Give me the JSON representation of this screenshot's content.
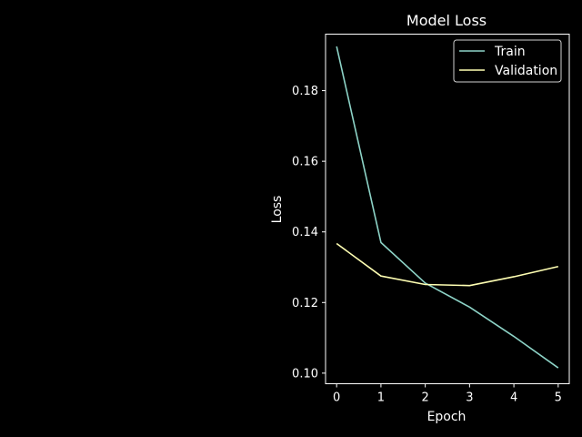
{
  "chart_data": {
    "type": "line",
    "title": "Model Loss",
    "xlabel": "Epoch",
    "ylabel": "Loss",
    "x": [
      0,
      1,
      2,
      3,
      4,
      5
    ],
    "xlim": [
      -0.25,
      5.25
    ],
    "ylim": [
      0.097,
      0.196
    ],
    "xticks": [
      0,
      1,
      2,
      3,
      4,
      5
    ],
    "yticks": [
      0.1,
      0.12,
      0.14,
      0.16,
      0.18
    ],
    "ytick_labels": [
      "0.10",
      "0.12",
      "0.14",
      "0.16",
      "0.18"
    ],
    "grid": false,
    "legend_position": "top-right",
    "series": [
      {
        "name": "Train",
        "color": "#8dd3c7",
        "values": [
          0.1925,
          0.137,
          0.1255,
          0.1187,
          0.1104,
          0.1015
        ]
      },
      {
        "name": "Validation",
        "color": "#ffffb3",
        "values": [
          0.1367,
          0.1275,
          0.1251,
          0.1248,
          0.1273,
          0.1302
        ]
      }
    ]
  }
}
